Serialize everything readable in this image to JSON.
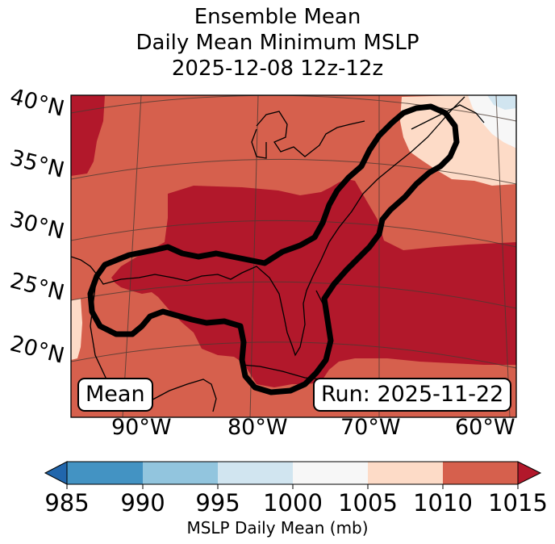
{
  "title": {
    "line1": "Ensemble Mean",
    "line2": "Daily Mean Minimum MSLP",
    "line3": "2025-12-08 12z-12z"
  },
  "map": {
    "lat_labels": [
      "40°N",
      "35°N",
      "30°N",
      "25°N",
      "20°N"
    ],
    "lon_labels": [
      "90°W",
      "80°W",
      "70°W",
      "60°W"
    ],
    "mean_label": "Mean",
    "run_label": "Run: 2025-11-22"
  },
  "colorbar": {
    "ticks": [
      "985",
      "990",
      "995",
      "1000",
      "1005",
      "1010",
      "1015"
    ],
    "label": "MSLP Daily Mean (mb)",
    "bins": [
      {
        "range": "985-990",
        "color": "#4393c3"
      },
      {
        "range": "990-995",
        "color": "#92c5de"
      },
      {
        "range": "995-1000",
        "color": "#d1e5f0"
      },
      {
        "range": "1000-1005",
        "color": "#f7f7f7"
      },
      {
        "range": "1005-1010",
        "color": "#fddbc7"
      },
      {
        "range": "1010-1015",
        "color": "#d6604d"
      }
    ],
    "under_color": "#2166ac",
    "over_color": "#b2182b"
  },
  "colors": {
    "high_pressure": "#b2182b",
    "mid_pressure": "#d6604d",
    "light_pressure": "#fddbc7",
    "neutral": "#f7f7f7",
    "low_pressure": "#d1e5f0",
    "contour": "#000000"
  }
}
